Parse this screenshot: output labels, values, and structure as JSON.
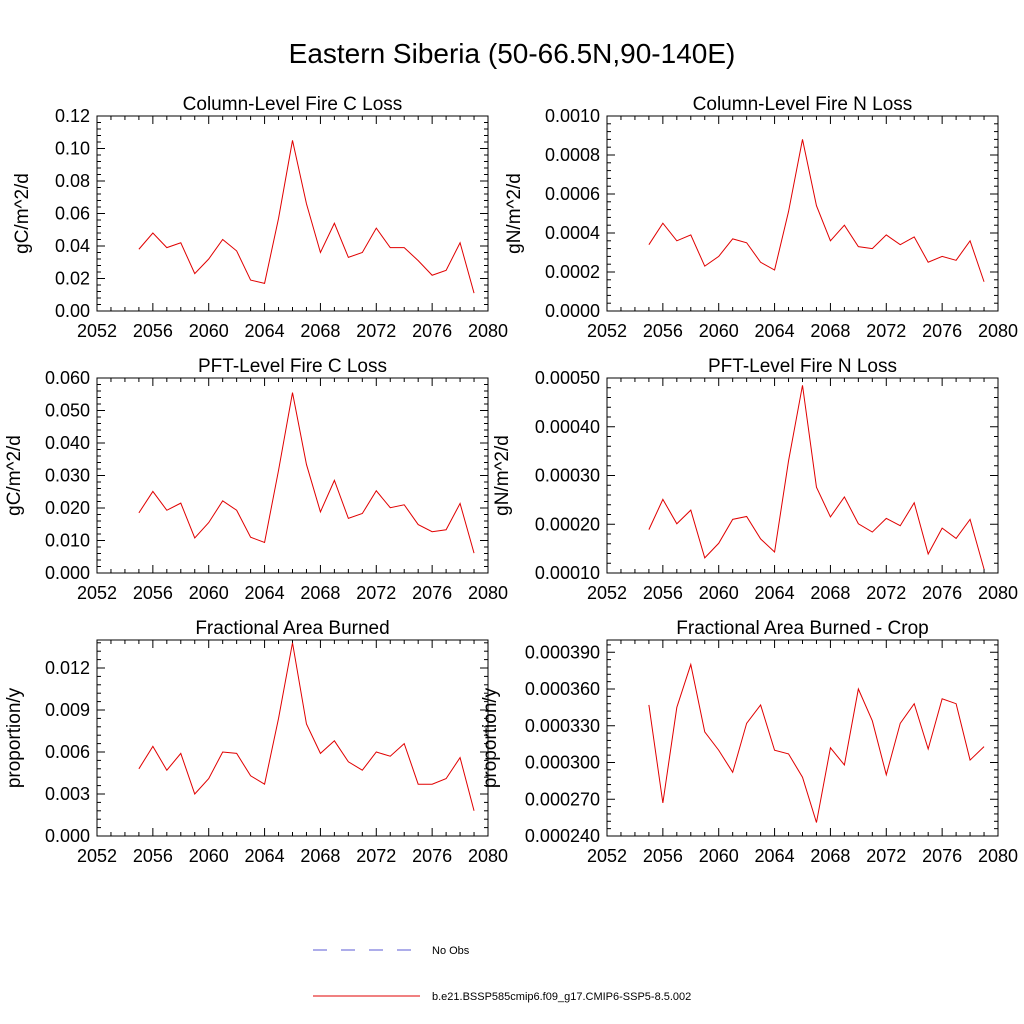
{
  "figure": {
    "title": "Eastern Siberia (50-66.5N,90-140E)"
  },
  "legend": [
    {
      "label": "No Obs",
      "color": "#5b5bd6",
      "style": "dashed"
    },
    {
      "label": "b.e21.BSSP585cmip6.f09_g17.CMIP6-SSP5-8.5.002",
      "color": "#e00000",
      "style": "solid"
    }
  ],
  "chart_data": [
    {
      "type": "line",
      "title": "Column-Level Fire C Loss",
      "ylabel": "gC/m^2/d",
      "xlim": [
        2052,
        2080
      ],
      "ylim": [
        0,
        0.12
      ],
      "xticks": [
        "2052",
        "2056",
        "2060",
        "2064",
        "2068",
        "2072",
        "2076",
        "2080"
      ],
      "yticks": [
        "0.00",
        "0.02",
        "0.04",
        "0.06",
        "0.08",
        "0.10",
        "0.12"
      ],
      "x": [
        2055,
        2056,
        2057,
        2058,
        2059,
        2060,
        2061,
        2062,
        2063,
        2064,
        2065,
        2066,
        2067,
        2068,
        2069,
        2070,
        2071,
        2072,
        2073,
        2074,
        2075,
        2076,
        2077,
        2078,
        2079
      ],
      "series": [
        {
          "values": [
            0.038,
            0.048,
            0.039,
            0.042,
            0.023,
            0.032,
            0.044,
            0.037,
            0.019,
            0.017,
            0.057,
            0.105,
            0.066,
            0.036,
            0.054,
            0.033,
            0.036,
            0.051,
            0.039,
            0.039,
            0.031,
            0.022,
            0.025,
            0.042,
            0.011
          ],
          "color": "#e00000"
        }
      ]
    },
    {
      "type": "line",
      "title": "Column-Level Fire N Loss",
      "ylabel": "gN/m^2/d",
      "xlim": [
        2052,
        2080
      ],
      "ylim": [
        0,
        0.001
      ],
      "xticks": [
        "2052",
        "2056",
        "2060",
        "2064",
        "2068",
        "2072",
        "2076",
        "2080"
      ],
      "yticks": [
        "0.0000",
        "0.0002",
        "0.0004",
        "0.0006",
        "0.0008",
        "0.0010"
      ],
      "x": [
        2055,
        2056,
        2057,
        2058,
        2059,
        2060,
        2061,
        2062,
        2063,
        2064,
        2065,
        2066,
        2067,
        2068,
        2069,
        2070,
        2071,
        2072,
        2073,
        2074,
        2075,
        2076,
        2077,
        2078,
        2079
      ],
      "series": [
        {
          "values": [
            0.00034,
            0.00045,
            0.00036,
            0.00039,
            0.00023,
            0.00028,
            0.00037,
            0.00035,
            0.00025,
            0.00021,
            0.00051,
            0.00088,
            0.00054,
            0.00036,
            0.00044,
            0.00033,
            0.00032,
            0.00039,
            0.00034,
            0.00038,
            0.00025,
            0.00028,
            0.00026,
            0.00036,
            0.00015
          ],
          "color": "#e00000"
        }
      ]
    },
    {
      "type": "line",
      "title": "PFT-Level Fire C Loss",
      "ylabel": "gC/m^2/d",
      "xlim": [
        2052,
        2080
      ],
      "ylim": [
        0,
        0.06
      ],
      "xticks": [
        "2052",
        "2056",
        "2060",
        "2064",
        "2068",
        "2072",
        "2076",
        "2080"
      ],
      "yticks": [
        "0.000",
        "0.010",
        "0.020",
        "0.030",
        "0.040",
        "0.050",
        "0.060"
      ],
      "x": [
        2055,
        2056,
        2057,
        2058,
        2059,
        2060,
        2061,
        2062,
        2063,
        2064,
        2065,
        2066,
        2067,
        2068,
        2069,
        2070,
        2071,
        2072,
        2073,
        2074,
        2075,
        2076,
        2077,
        2078,
        2079
      ],
      "series": [
        {
          "values": [
            0.0185,
            0.0251,
            0.0193,
            0.0215,
            0.0108,
            0.0155,
            0.0222,
            0.0193,
            0.011,
            0.0094,
            0.0316,
            0.0555,
            0.0334,
            0.0188,
            0.0285,
            0.0168,
            0.0183,
            0.0253,
            0.0201,
            0.021,
            0.0149,
            0.0127,
            0.0133,
            0.0214,
            0.0061
          ],
          "color": "#e00000"
        }
      ]
    },
    {
      "type": "line",
      "title": "PFT-Level Fire N Loss",
      "ylabel": "gN/m^2/d",
      "xlim": [
        2052,
        2080
      ],
      "ylim": [
        0.0001,
        0.0005
      ],
      "xticks": [
        "2052",
        "2056",
        "2060",
        "2064",
        "2068",
        "2072",
        "2076",
        "2080"
      ],
      "yticks": [
        "0.00010",
        "0.00020",
        "0.00030",
        "0.00040",
        "0.00050"
      ],
      "x": [
        2055,
        2056,
        2057,
        2058,
        2059,
        2060,
        2061,
        2062,
        2063,
        2064,
        2065,
        2066,
        2067,
        2068,
        2069,
        2070,
        2071,
        2072,
        2073,
        2074,
        2075,
        2076,
        2077,
        2078,
        2079
      ],
      "series": [
        {
          "values": [
            0.000189,
            0.000251,
            0.000201,
            0.000229,
            0.000131,
            0.000161,
            0.00021,
            0.000216,
            0.00017,
            0.000143,
            0.00033,
            0.000485,
            0.000276,
            0.000215,
            0.000256,
            0.000201,
            0.000184,
            0.000212,
            0.000197,
            0.000244,
            0.000139,
            0.000192,
            0.000171,
            0.00021,
            0.000108
          ],
          "color": "#e00000"
        }
      ]
    },
    {
      "type": "line",
      "title": "Fractional Area Burned",
      "ylabel": "proportion/y",
      "xlim": [
        2052,
        2080
      ],
      "ylim": [
        0,
        0.014
      ],
      "xticks": [
        "2052",
        "2056",
        "2060",
        "2064",
        "2068",
        "2072",
        "2076",
        "2080"
      ],
      "yticks": [
        "0.000",
        "0.003",
        "0.006",
        "0.009",
        "0.012"
      ],
      "x": [
        2055,
        2056,
        2057,
        2058,
        2059,
        2060,
        2061,
        2062,
        2063,
        2064,
        2065,
        2066,
        2067,
        2068,
        2069,
        2070,
        2071,
        2072,
        2073,
        2074,
        2075,
        2076,
        2077,
        2078,
        2079
      ],
      "series": [
        {
          "values": [
            0.0048,
            0.0064,
            0.0047,
            0.0059,
            0.003,
            0.0041,
            0.006,
            0.0059,
            0.0043,
            0.0037,
            0.0084,
            0.0138,
            0.008,
            0.0059,
            0.0068,
            0.0053,
            0.0047,
            0.006,
            0.0057,
            0.0066,
            0.0037,
            0.0037,
            0.0041,
            0.0056,
            0.0018
          ],
          "color": "#e00000"
        }
      ]
    },
    {
      "type": "line",
      "title": "Fractional Area Burned - Crop",
      "ylabel": "proportion/y",
      "xlim": [
        2052,
        2080
      ],
      "ylim": [
        0.00024,
        0.0004
      ],
      "xticks": [
        "2052",
        "2056",
        "2060",
        "2064",
        "2068",
        "2072",
        "2076",
        "2080"
      ],
      "yticks": [
        "0.000240",
        "0.000270",
        "0.000300",
        "0.000330",
        "0.000360",
        "0.000390"
      ],
      "x": [
        2055,
        2056,
        2057,
        2058,
        2059,
        2060,
        2061,
        2062,
        2063,
        2064,
        2065,
        2066,
        2067,
        2068,
        2069,
        2070,
        2071,
        2072,
        2073,
        2074,
        2075,
        2076,
        2077,
        2078,
        2079
      ],
      "series": [
        {
          "values": [
            0.000347,
            0.000267,
            0.000345,
            0.00038,
            0.000325,
            0.00031,
            0.000292,
            0.000332,
            0.000347,
            0.00031,
            0.000307,
            0.000288,
            0.000251,
            0.000312,
            0.000298,
            0.00036,
            0.000334,
            0.00029,
            0.000332,
            0.000348,
            0.000311,
            0.000352,
            0.000348,
            0.000302,
            0.000313
          ],
          "color": "#e00000"
        }
      ]
    }
  ]
}
